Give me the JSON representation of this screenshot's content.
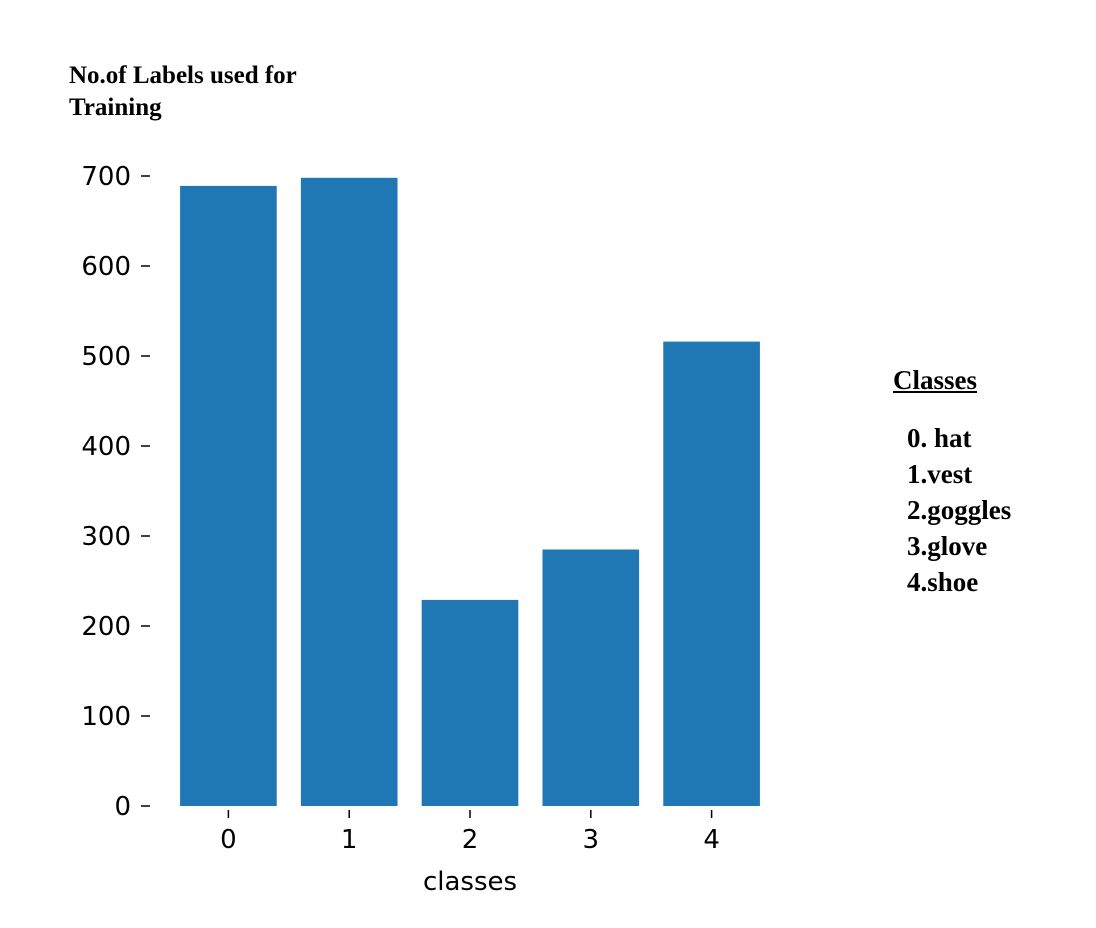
{
  "chart_data": {
    "type": "bar",
    "categories": [
      "0",
      "1",
      "2",
      "3",
      "4"
    ],
    "values": [
      689,
      698,
      229,
      285,
      516
    ],
    "ylabel": "No.of Labels used for Training",
    "xlabel": "classes",
    "ylim": [
      0,
      700
    ],
    "yticks": [
      0,
      100,
      200,
      300,
      400,
      500,
      600,
      700
    ],
    "bar_color": "#1f77b4",
    "grid": false,
    "legend_placement": "right"
  },
  "legend": {
    "title": "Classes",
    "items": [
      "0. hat",
      "1.vest",
      "2.goggles",
      "3.glove",
      "4.shoe"
    ]
  }
}
